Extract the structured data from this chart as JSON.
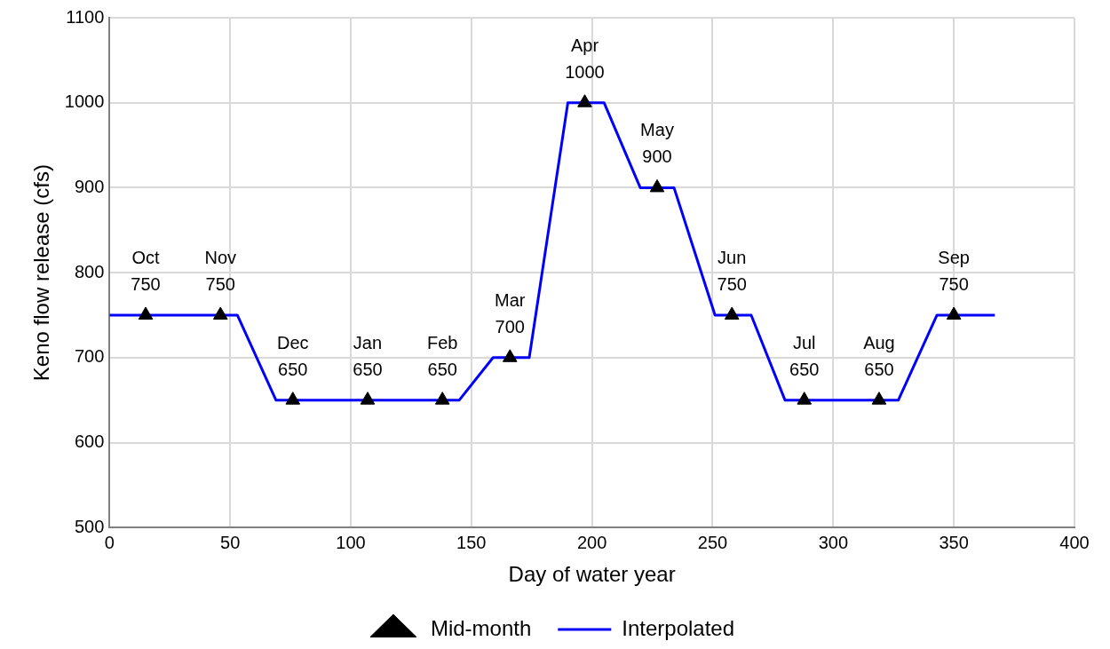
{
  "chart_data": {
    "type": "scatter",
    "xlabel": "Day of water year",
    "ylabel": "Keno flow release (cfs)",
    "xlim": [
      0,
      400
    ],
    "xticks": [
      0,
      50,
      100,
      150,
      200,
      250,
      300,
      350,
      400
    ],
    "ylim": [
      500,
      1100
    ],
    "yticks": [
      500,
      600,
      700,
      800,
      900,
      1000,
      1100
    ],
    "grid": true,
    "legend": "bottom",
    "series": [
      {
        "name": "Mid-month",
        "color": "#000000",
        "marker": "triangle",
        "x": [
          15,
          46,
          76,
          107,
          138,
          166,
          197,
          227,
          258,
          288,
          319,
          350
        ],
        "values": [
          750,
          750,
          650,
          650,
          650,
          700,
          1000,
          900,
          750,
          650,
          650,
          750
        ],
        "value_labels": [
          "750",
          "750",
          "650",
          "650",
          "650",
          "700",
          "1000",
          "900",
          "750",
          "650",
          "650",
          "750"
        ]
      },
      {
        "name": "Interpolated",
        "type": "line",
        "color": "#0000ff",
        "marker": "none",
        "x": [
          0,
          53,
          69,
          145,
          159,
          174,
          190,
          205,
          220,
          234,
          251,
          266,
          280,
          327,
          343,
          367
        ],
        "values": [
          750,
          750,
          650,
          650,
          700,
          700,
          1000,
          1000,
          900,
          900,
          750,
          750,
          650,
          650,
          750,
          750
        ]
      }
    ],
    "annotations": [
      {
        "text": "Oct",
        "x": 15,
        "y": 750
      },
      {
        "text": "Nov",
        "x": 46,
        "y": 750
      },
      {
        "text": "Dec",
        "x": 76,
        "y": 650
      },
      {
        "text": "Jan",
        "x": 107,
        "y": 650
      },
      {
        "text": "Feb",
        "x": 138,
        "y": 650
      },
      {
        "text": "Mar",
        "x": 166,
        "y": 700
      },
      {
        "text": "Apr",
        "x": 197,
        "y": 1000
      },
      {
        "text": "May",
        "x": 227,
        "y": 900
      },
      {
        "text": "Jun",
        "x": 258,
        "y": 750
      },
      {
        "text": "Jul",
        "x": 288,
        "y": 650
      },
      {
        "text": "Aug",
        "x": 319,
        "y": 650
      },
      {
        "text": "Sep",
        "x": 350,
        "y": 750
      }
    ]
  }
}
